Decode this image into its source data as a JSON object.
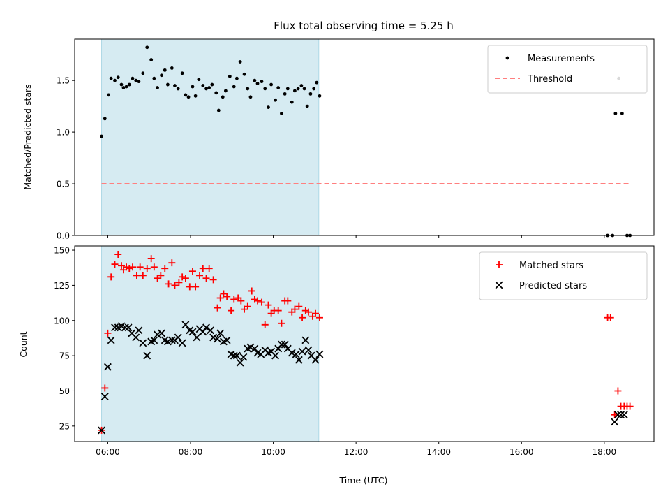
{
  "chart_data": {
    "type": "scatter",
    "title": "Flux total observing time = 5.25 h",
    "observing_window": {
      "start_h": 5.85,
      "end_h": 11.1,
      "color": "#add8e6"
    },
    "x_axis": {
      "label": "Time (UTC)",
      "range_h": [
        5.2,
        19.2
      ],
      "ticks_h": [
        6,
        8,
        10,
        12,
        14,
        16,
        18
      ],
      "tick_labels": [
        "06:00",
        "08:00",
        "10:00",
        "12:00",
        "14:00",
        "16:00",
        "18:00"
      ]
    },
    "panels": [
      {
        "name": "ratio",
        "ylabel": "Matched/Predicted stars",
        "ylim": [
          0,
          1.9
        ],
        "yticks": [
          0.0,
          0.5,
          1.0,
          1.5
        ],
        "ytick_labels": [
          "0.0",
          "0.5",
          "1.0",
          "1.5"
        ],
        "legend_position": "top-right",
        "series": [
          {
            "name": "Measurements",
            "marker": "dot",
            "color": "#000000",
            "points": [
              [
                5.85,
                0.96
              ],
              [
                5.93,
                1.13
              ],
              [
                6.02,
                1.36
              ],
              [
                6.08,
                1.52
              ],
              [
                6.17,
                1.5
              ],
              [
                6.25,
                1.53
              ],
              [
                6.33,
                1.46
              ],
              [
                6.38,
                1.43
              ],
              [
                6.45,
                1.44
              ],
              [
                6.52,
                1.46
              ],
              [
                6.6,
                1.52
              ],
              [
                6.68,
                1.5
              ],
              [
                6.75,
                1.49
              ],
              [
                6.85,
                1.57
              ],
              [
                6.95,
                1.82
              ],
              [
                7.05,
                1.7
              ],
              [
                7.12,
                1.52
              ],
              [
                7.2,
                1.43
              ],
              [
                7.3,
                1.55
              ],
              [
                7.38,
                1.6
              ],
              [
                7.45,
                1.46
              ],
              [
                7.55,
                1.62
              ],
              [
                7.62,
                1.45
              ],
              [
                7.7,
                1.42
              ],
              [
                7.8,
                1.57
              ],
              [
                7.88,
                1.36
              ],
              [
                7.95,
                1.34
              ],
              [
                8.05,
                1.44
              ],
              [
                8.12,
                1.35
              ],
              [
                8.2,
                1.51
              ],
              [
                8.3,
                1.45
              ],
              [
                8.38,
                1.42
              ],
              [
                8.45,
                1.43
              ],
              [
                8.52,
                1.46
              ],
              [
                8.62,
                1.38
              ],
              [
                8.68,
                1.21
              ],
              [
                8.78,
                1.34
              ],
              [
                8.85,
                1.4
              ],
              [
                8.95,
                1.54
              ],
              [
                9.05,
                1.44
              ],
              [
                9.12,
                1.52
              ],
              [
                9.2,
                1.68
              ],
              [
                9.3,
                1.56
              ],
              [
                9.38,
                1.42
              ],
              [
                9.45,
                1.34
              ],
              [
                9.55,
                1.5
              ],
              [
                9.62,
                1.47
              ],
              [
                9.72,
                1.49
              ],
              [
                9.8,
                1.42
              ],
              [
                9.88,
                1.24
              ],
              [
                9.95,
                1.46
              ],
              [
                10.05,
                1.31
              ],
              [
                10.12,
                1.43
              ],
              [
                10.2,
                1.18
              ],
              [
                10.28,
                1.37
              ],
              [
                10.35,
                1.42
              ],
              [
                10.45,
                1.29
              ],
              [
                10.52,
                1.4
              ],
              [
                10.6,
                1.42
              ],
              [
                10.68,
                1.45
              ],
              [
                10.75,
                1.42
              ],
              [
                10.82,
                1.25
              ],
              [
                10.9,
                1.37
              ],
              [
                10.98,
                1.42
              ],
              [
                11.05,
                1.48
              ],
              [
                11.12,
                1.35
              ],
              [
                18.08,
                0.0
              ],
              [
                18.2,
                0.0
              ],
              [
                18.27,
                1.18
              ],
              [
                18.35,
                1.52
              ],
              [
                18.43,
                1.18
              ],
              [
                18.55,
                0.0
              ],
              [
                18.62,
                0.0
              ]
            ]
          },
          {
            "name": "Threshold",
            "style": "dashed",
            "color": "#ff7f7f",
            "points": [
              [
                5.85,
                0.5
              ],
              [
                18.6,
                0.5
              ]
            ]
          }
        ]
      },
      {
        "name": "counts",
        "ylabel": "Count",
        "ylim": [
          14,
          153
        ],
        "yticks": [
          25,
          50,
          75,
          100,
          125,
          150
        ],
        "ytick_labels": [
          "25",
          "50",
          "75",
          "100",
          "125",
          "150"
        ],
        "legend_position": "top-right",
        "series": [
          {
            "name": "Matched stars",
            "marker": "plus",
            "color": "#ff0000",
            "points": [
              [
                5.85,
                22
              ],
              [
                5.93,
                52
              ],
              [
                6.0,
                91
              ],
              [
                6.08,
                131
              ],
              [
                6.17,
                140
              ],
              [
                6.25,
                147
              ],
              [
                6.33,
                139
              ],
              [
                6.38,
                136
              ],
              [
                6.45,
                138
              ],
              [
                6.52,
                137
              ],
              [
                6.6,
                138
              ],
              [
                6.7,
                132
              ],
              [
                6.78,
                138
              ],
              [
                6.85,
                132
              ],
              [
                6.95,
                137
              ],
              [
                7.05,
                144
              ],
              [
                7.12,
                138
              ],
              [
                7.2,
                130
              ],
              [
                7.28,
                132
              ],
              [
                7.38,
                137
              ],
              [
                7.47,
                126
              ],
              [
                7.55,
                141
              ],
              [
                7.62,
                125
              ],
              [
                7.72,
                127
              ],
              [
                7.8,
                131
              ],
              [
                7.88,
                130
              ],
              [
                7.98,
                124
              ],
              [
                8.05,
                135
              ],
              [
                8.12,
                124
              ],
              [
                8.22,
                132
              ],
              [
                8.3,
                137
              ],
              [
                8.38,
                130
              ],
              [
                8.45,
                137
              ],
              [
                8.55,
                129
              ],
              [
                8.65,
                109
              ],
              [
                8.72,
                116
              ],
              [
                8.8,
                119
              ],
              [
                8.88,
                117
              ],
              [
                8.98,
                107
              ],
              [
                9.05,
                115
              ],
              [
                9.15,
                116
              ],
              [
                9.22,
                114
              ],
              [
                9.3,
                108
              ],
              [
                9.38,
                110
              ],
              [
                9.48,
                121
              ],
              [
                9.55,
                115
              ],
              [
                9.62,
                114
              ],
              [
                9.72,
                113
              ],
              [
                9.8,
                97
              ],
              [
                9.88,
                111
              ],
              [
                9.95,
                105
              ],
              [
                10.02,
                107
              ],
              [
                10.12,
                107
              ],
              [
                10.2,
                98
              ],
              [
                10.28,
                114
              ],
              [
                10.35,
                114
              ],
              [
                10.45,
                106
              ],
              [
                10.52,
                108
              ],
              [
                10.62,
                110
              ],
              [
                10.7,
                102
              ],
              [
                10.78,
                107
              ],
              [
                10.85,
                106
              ],
              [
                10.95,
                103
              ],
              [
                11.02,
                105
              ],
              [
                11.12,
                102
              ],
              [
                18.08,
                102
              ],
              [
                18.15,
                102
              ],
              [
                18.25,
                33
              ],
              [
                18.33,
                50
              ],
              [
                18.4,
                39
              ],
              [
                18.48,
                39
              ],
              [
                18.55,
                39
              ],
              [
                18.62,
                39
              ]
            ]
          },
          {
            "name": "Predicted stars",
            "marker": "x",
            "color": "#000000",
            "points": [
              [
                5.85,
                22
              ],
              [
                5.93,
                46
              ],
              [
                6.0,
                67
              ],
              [
                6.08,
                86
              ],
              [
                6.17,
                95
              ],
              [
                6.25,
                95
              ],
              [
                6.33,
                96
              ],
              [
                6.42,
                95
              ],
              [
                6.5,
                95
              ],
              [
                6.58,
                91
              ],
              [
                6.68,
                88
              ],
              [
                6.75,
                93
              ],
              [
                6.85,
                84
              ],
              [
                6.95,
                75
              ],
              [
                7.05,
                85
              ],
              [
                7.12,
                86
              ],
              [
                7.2,
                90
              ],
              [
                7.3,
                91
              ],
              [
                7.38,
                86
              ],
              [
                7.45,
                85
              ],
              [
                7.55,
                86
              ],
              [
                7.62,
                86
              ],
              [
                7.7,
                88
              ],
              [
                7.8,
                84
              ],
              [
                7.88,
                97
              ],
              [
                7.98,
                93
              ],
              [
                8.05,
                92
              ],
              [
                8.15,
                88
              ],
              [
                8.22,
                94
              ],
              [
                8.3,
                92
              ],
              [
                8.38,
                95
              ],
              [
                8.48,
                93
              ],
              [
                8.55,
                88
              ],
              [
                8.65,
                87
              ],
              [
                8.72,
                91
              ],
              [
                8.8,
                85
              ],
              [
                8.88,
                86
              ],
              [
                8.98,
                76
              ],
              [
                9.05,
                75
              ],
              [
                9.12,
                75
              ],
              [
                9.2,
                70
              ],
              [
                9.28,
                74
              ],
              [
                9.38,
                80
              ],
              [
                9.45,
                81
              ],
              [
                9.55,
                80
              ],
              [
                9.62,
                77
              ],
              [
                9.7,
                76
              ],
              [
                9.8,
                79
              ],
              [
                9.88,
                77
              ],
              [
                9.95,
                78
              ],
              [
                10.05,
                75
              ],
              [
                10.12,
                80
              ],
              [
                10.2,
                83
              ],
              [
                10.28,
                83
              ],
              [
                10.35,
                80
              ],
              [
                10.45,
                77
              ],
              [
                10.55,
                76
              ],
              [
                10.62,
                72
              ],
              [
                10.7,
                78
              ],
              [
                10.78,
                86
              ],
              [
                10.85,
                79
              ],
              [
                10.92,
                75
              ],
              [
                11.02,
                72
              ],
              [
                11.12,
                76
              ],
              [
                18.25,
                28
              ],
              [
                18.33,
                33
              ],
              [
                18.4,
                33
              ],
              [
                18.48,
                33
              ]
            ]
          }
        ]
      }
    ]
  }
}
